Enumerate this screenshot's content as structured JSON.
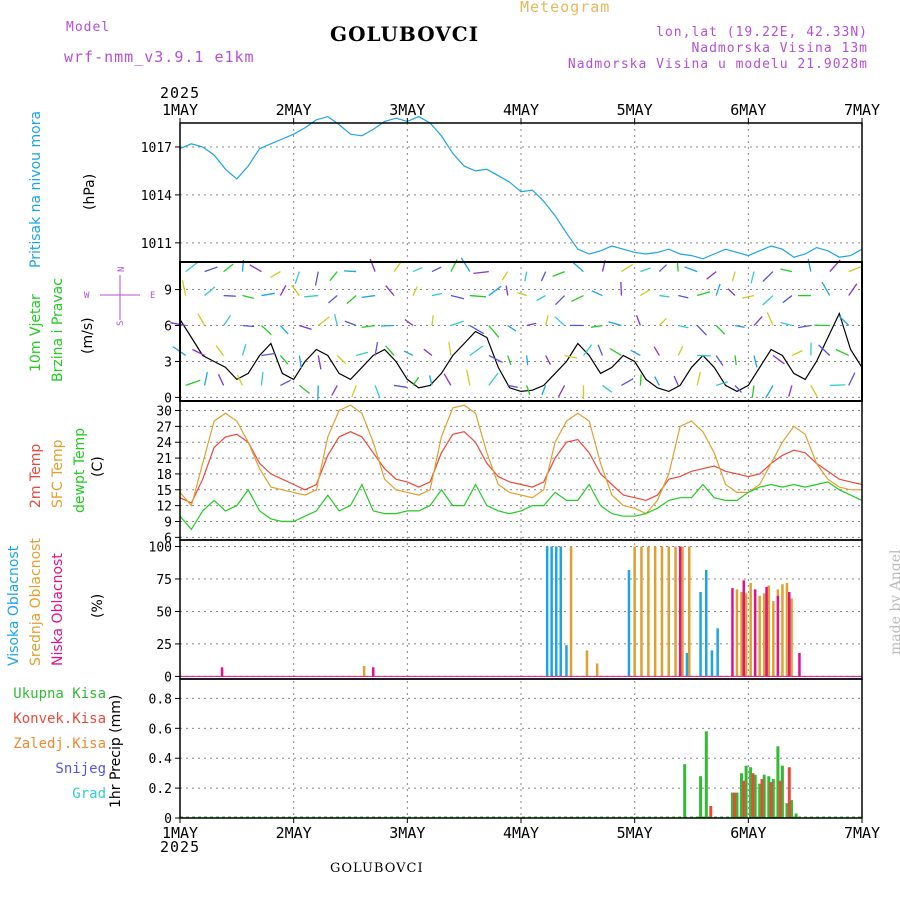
{
  "header": {
    "model_label": "Model",
    "model_name": "wrf-nmm_v3.9.1 e1km",
    "meteogram_label": "Meteogram",
    "title": "GOLUBOVCI",
    "coords": "lon,lat (19.22E, 42.33N)",
    "altitude": "Nadmorska Visina 13m",
    "model_altitude": "Nadmorska Visina u modelu 21.9028m",
    "bottom_title": "GOLUBOVCI",
    "made_by": "made by Angel",
    "year_top": "2025",
    "year_bottom": "2025"
  },
  "colors": {
    "label_purple": "#b44fd6",
    "meteogram": "#e6b85c",
    "pressure": "#1ca4e4",
    "wind_green": "#22cc22",
    "temp_red": "#e84a3c",
    "temp_orange": "#e0a030",
    "dewpt_green": "#22cc22",
    "cloud_high": "#1ca4e4",
    "cloud_mid": "#e0a030",
    "cloud_low": "#e0128c",
    "precip_total": "#33bb33",
    "precip_conv": "#e84a3c",
    "precip_frozen": "#f08a30",
    "snow": "#5555dd",
    "graupel": "#33cccc"
  },
  "panel_labels": {
    "pressure_title": "Pritisak na nivou mora",
    "pressure_unit": "(hPa)",
    "wind_title_1": "10m Vjetar",
    "wind_title_2": "Brzina i Pravac",
    "wind_unit": "(m/s)",
    "temp_1": "2m Temp",
    "temp_2": "SFC Temp",
    "temp_3": "dewpt Temp",
    "temp_unit": "(C)",
    "cloud_1": "Visoka Oblacnost",
    "cloud_2": "Srednja Oblacnost",
    "cloud_3": "Niska Oblacnost",
    "cloud_unit": "(%)",
    "precip_unit": "1hr Precip (mm)",
    "precip_legend": [
      "Ukupna Kisa",
      "Konvek.Kisa",
      "Zaledj.Kisa",
      "Snijeg",
      "Grad"
    ],
    "compass_w": "W",
    "compass_e": "E",
    "compass_n": "N",
    "compass_s": "S"
  },
  "chart_data": [
    {
      "panel": "pressure",
      "type": "line",
      "x_ticks": [
        "1MAY",
        "2MAY",
        "3MAY",
        "4MAY",
        "5MAY",
        "6MAY",
        "7MAY"
      ],
      "yticks": [
        1011,
        1014,
        1017
      ],
      "ylim": [
        1009.8,
        1018.5
      ],
      "series": [
        {
          "name": "Pritisak na nivou mora",
          "x": [
            0,
            0.1,
            0.2,
            0.3,
            0.4,
            0.5,
            0.6,
            0.7,
            0.8,
            0.9,
            1.0,
            1.1,
            1.2,
            1.3,
            1.4,
            1.5,
            1.6,
            1.7,
            1.8,
            1.9,
            2.0,
            2.1,
            2.2,
            2.3,
            2.4,
            2.5,
            2.6,
            2.7,
            2.8,
            2.9,
            3.0,
            3.1,
            3.2,
            3.3,
            3.4,
            3.5,
            3.6,
            3.7,
            3.8,
            3.9,
            4.0,
            4.1,
            4.2,
            4.3,
            4.4,
            4.5,
            4.6,
            4.7,
            4.8,
            4.9,
            5.0,
            5.1,
            5.2,
            5.3,
            5.4,
            5.5,
            5.6,
            5.7,
            5.8,
            5.9,
            6.0
          ],
          "values": [
            1016.9,
            1017.2,
            1017.0,
            1016.5,
            1015.6,
            1015.0,
            1015.8,
            1016.9,
            1017.2,
            1017.5,
            1017.8,
            1018.2,
            1018.7,
            1018.9,
            1018.4,
            1017.8,
            1017.7,
            1018.1,
            1018.6,
            1018.8,
            1018.6,
            1018.9,
            1018.5,
            1017.7,
            1016.6,
            1015.8,
            1015.5,
            1015.6,
            1015.2,
            1014.8,
            1014.2,
            1014.3,
            1013.6,
            1012.7,
            1011.6,
            1010.6,
            1010.3,
            1010.5,
            1010.8,
            1010.6,
            1010.4,
            1010.3,
            1010.4,
            1010.6,
            1010.3,
            1010.2,
            1010.0,
            1010.3,
            1010.6,
            1010.4,
            1010.2,
            1010.5,
            1010.8,
            1010.6,
            1010.1,
            1010.3,
            1010.7,
            1010.5,
            1010.1,
            1010.2,
            1010.6
          ]
        }
      ]
    },
    {
      "panel": "wind",
      "type": "line",
      "yticks": [
        0,
        3,
        6,
        9
      ],
      "ylim": [
        -0.3,
        11.3
      ],
      "series": [
        {
          "name": "wind speed",
          "x": [
            0,
            0.1,
            0.2,
            0.3,
            0.4,
            0.5,
            0.6,
            0.7,
            0.8,
            0.9,
            1.0,
            1.1,
            1.2,
            1.3,
            1.4,
            1.5,
            1.6,
            1.7,
            1.8,
            1.9,
            2.0,
            2.1,
            2.2,
            2.3,
            2.4,
            2.5,
            2.6,
            2.7,
            2.8,
            2.9,
            3.0,
            3.1,
            3.2,
            3.3,
            3.4,
            3.5,
            3.6,
            3.7,
            3.8,
            3.9,
            4.0,
            4.1,
            4.2,
            4.3,
            4.4,
            4.5,
            4.6,
            4.7,
            4.8,
            4.9,
            5.0,
            5.1,
            5.2,
            5.3,
            5.4,
            5.5,
            5.6,
            5.7,
            5.8,
            5.9,
            6.0
          ],
          "values": [
            6.5,
            5.0,
            3.5,
            3.0,
            2.5,
            1.5,
            2.0,
            3.5,
            4.5,
            2.0,
            1.5,
            3.0,
            4.0,
            3.5,
            2.0,
            1.5,
            2.5,
            3.5,
            4.0,
            3.0,
            1.5,
            0.8,
            1.0,
            2.0,
            3.5,
            4.5,
            5.5,
            5.0,
            2.5,
            0.8,
            0.5,
            0.6,
            1.0,
            2.0,
            3.0,
            4.5,
            3.5,
            2.0,
            2.5,
            3.5,
            3.0,
            1.5,
            0.8,
            0.5,
            1.0,
            2.5,
            3.5,
            2.5,
            1.0,
            0.5,
            1.0,
            2.5,
            4.0,
            3.5,
            2.0,
            1.5,
            3.0,
            5.0,
            7.0,
            4.0,
            2.5
          ]
        }
      ]
    },
    {
      "panel": "temperature",
      "type": "line",
      "yticks": [
        6,
        9,
        12,
        15,
        18,
        21,
        24,
        27,
        30
      ],
      "ylim": [
        5.5,
        31.8
      ],
      "series": [
        {
          "name": "2m Temp",
          "x": [
            0,
            0.1,
            0.2,
            0.3,
            0.4,
            0.5,
            0.6,
            0.7,
            0.8,
            0.9,
            1.0,
            1.1,
            1.2,
            1.3,
            1.4,
            1.5,
            1.6,
            1.7,
            1.8,
            1.9,
            2.0,
            2.1,
            2.2,
            2.3,
            2.4,
            2.5,
            2.6,
            2.7,
            2.8,
            2.9,
            3.0,
            3.1,
            3.2,
            3.3,
            3.4,
            3.5,
            3.6,
            3.7,
            3.8,
            3.9,
            4.0,
            4.1,
            4.2,
            4.3,
            4.4,
            4.5,
            4.6,
            4.7,
            4.8,
            4.9,
            5.0,
            5.1,
            5.2,
            5.3,
            5.4,
            5.5,
            5.6,
            5.7,
            5.8,
            5.9,
            6.0
          ],
          "values": [
            13.5,
            12.5,
            17,
            23,
            25,
            25.5,
            24,
            20,
            18,
            17,
            16,
            15,
            16,
            21.5,
            25,
            26,
            25,
            22,
            19,
            17,
            16.5,
            15.5,
            16.5,
            22,
            25.5,
            26,
            24,
            20,
            17.5,
            16.5,
            16,
            15.5,
            16.5,
            21,
            24,
            24.5,
            22,
            18,
            16,
            14,
            13.5,
            13.0,
            14,
            17,
            17.5,
            18.5,
            19,
            19.5,
            18.5,
            18,
            17.5,
            18,
            20,
            21.5,
            22.5,
            22,
            20,
            18.5,
            17,
            16.5,
            16
          ]
        },
        {
          "name": "SFC Temp",
          "x": [
            0,
            0.1,
            0.2,
            0.3,
            0.4,
            0.5,
            0.6,
            0.7,
            0.8,
            0.9,
            1.0,
            1.1,
            1.2,
            1.3,
            1.4,
            1.5,
            1.6,
            1.7,
            1.8,
            1.9,
            2.0,
            2.1,
            2.2,
            2.3,
            2.4,
            2.5,
            2.6,
            2.7,
            2.8,
            2.9,
            3.0,
            3.1,
            3.2,
            3.3,
            3.4,
            3.5,
            3.6,
            3.7,
            3.8,
            3.9,
            4.0,
            4.1,
            4.2,
            4.3,
            4.4,
            4.5,
            4.6,
            4.7,
            4.8,
            4.9,
            5.0,
            5.1,
            5.2,
            5.3,
            5.4,
            5.5,
            5.6,
            5.7,
            5.8,
            5.9,
            6.0
          ],
          "values": [
            14.5,
            12,
            20,
            28,
            29.5,
            28,
            24,
            19,
            15.5,
            15,
            14.5,
            14,
            15,
            25,
            30,
            31,
            29.5,
            24,
            17,
            15,
            14.5,
            14,
            15,
            25,
            30.5,
            31,
            29.5,
            22,
            16,
            14.5,
            14,
            13.5,
            15,
            24,
            28,
            29.5,
            28,
            20,
            14,
            12,
            11.5,
            10.5,
            13,
            18,
            27,
            28,
            26,
            22,
            16,
            14.5,
            14.5,
            16,
            20,
            24,
            27,
            25.5,
            20,
            17,
            15.5,
            15,
            15
          ]
        },
        {
          "name": "dewpt Temp",
          "x": [
            0,
            0.1,
            0.2,
            0.3,
            0.4,
            0.5,
            0.6,
            0.7,
            0.8,
            0.9,
            1.0,
            1.1,
            1.2,
            1.3,
            1.4,
            1.5,
            1.6,
            1.7,
            1.8,
            1.9,
            2.0,
            2.1,
            2.2,
            2.3,
            2.4,
            2.5,
            2.6,
            2.7,
            2.8,
            2.9,
            3.0,
            3.1,
            3.2,
            3.3,
            3.4,
            3.5,
            3.6,
            3.7,
            3.8,
            3.9,
            4.0,
            4.1,
            4.2,
            4.3,
            4.4,
            4.5,
            4.6,
            4.7,
            4.8,
            4.9,
            5.0,
            5.1,
            5.2,
            5.3,
            5.4,
            5.5,
            5.6,
            5.7,
            5.8,
            5.9,
            6.0
          ],
          "values": [
            10,
            7.5,
            11,
            13,
            11,
            12,
            15,
            11,
            9.5,
            9,
            9,
            10,
            11,
            14,
            11,
            12,
            16,
            11,
            10.5,
            10.5,
            11,
            11,
            12,
            15,
            12,
            12,
            16,
            12,
            11,
            10.5,
            11,
            12,
            12,
            14.5,
            13,
            13,
            16,
            12,
            10.5,
            10,
            10,
            10.5,
            11.5,
            13,
            13.5,
            13.5,
            16,
            13.5,
            13,
            13,
            14.5,
            15.5,
            16,
            15.5,
            16,
            15.5,
            16,
            16.5,
            15,
            14,
            13
          ]
        }
      ]
    },
    {
      "panel": "cloud",
      "type": "bar",
      "yticks": [
        0,
        25,
        50,
        75,
        100
      ],
      "ylim": [
        -2,
        105
      ],
      "series": [
        {
          "name": "Visoka Oblacnost",
          "x": [
            3.23,
            3.27,
            3.31,
            3.35,
            3.4,
            3.95,
            4.46,
            4.58,
            4.63,
            4.68,
            4.73
          ],
          "values": [
            100,
            100,
            100,
            100,
            24,
            82,
            18,
            65,
            82,
            20,
            37
          ]
        },
        {
          "name": "Srednja Oblacnost",
          "x": [
            1.62,
            3.44,
            3.58,
            3.67,
            4.0,
            4.06,
            4.12,
            4.18,
            4.24,
            4.3,
            4.36,
            4.42,
            4.48,
            4.9,
            4.94,
            4.98,
            5.02,
            5.06,
            5.1,
            5.14,
            5.18,
            5.22,
            5.26,
            5.3,
            5.34,
            5.38
          ],
          "values": [
            8,
            100,
            20,
            10,
            100,
            100,
            100,
            100,
            100,
            100,
            100,
            100,
            100,
            67,
            65,
            64,
            72,
            67,
            62,
            64,
            70,
            58,
            67,
            71,
            72,
            60
          ]
        },
        {
          "name": "Niska Oblacnost",
          "x": [
            0.37,
            1.7,
            4.4,
            4.86,
            4.96,
            5.06,
            5.16,
            5.26,
            5.36,
            5.45
          ],
          "values": [
            7,
            7,
            100,
            68,
            74,
            67,
            69,
            62,
            65,
            18
          ]
        }
      ]
    },
    {
      "panel": "precip",
      "type": "bar",
      "yticks": [
        0,
        0.2,
        0.4,
        0.6,
        0.8
      ],
      "ylim": [
        0,
        0.93
      ],
      "series": [
        {
          "name": "Ukupna Kisa",
          "x": [
            4.44,
            4.58,
            4.63,
            4.86,
            4.9,
            4.94,
            4.98,
            5.02,
            5.06,
            5.1,
            5.14,
            5.18,
            5.22,
            5.26,
            5.3,
            5.34,
            5.38,
            5.42,
            5.46
          ],
          "values": [
            0.36,
            0.28,
            0.58,
            0.17,
            0.17,
            0.3,
            0.35,
            0.34,
            0.29,
            0.23,
            0.29,
            0.28,
            0.26,
            0.48,
            0.35,
            0.1,
            0.12,
            0.03,
            0.0
          ]
        },
        {
          "name": "Konvek.Kisa",
          "x": [
            4.67,
            4.88,
            4.96,
            5.04,
            5.12,
            5.2,
            5.28,
            5.36
          ],
          "values": [
            0.08,
            0.17,
            0.25,
            0.3,
            0.26,
            0.24,
            0.25,
            0.34
          ]
        }
      ]
    }
  ]
}
